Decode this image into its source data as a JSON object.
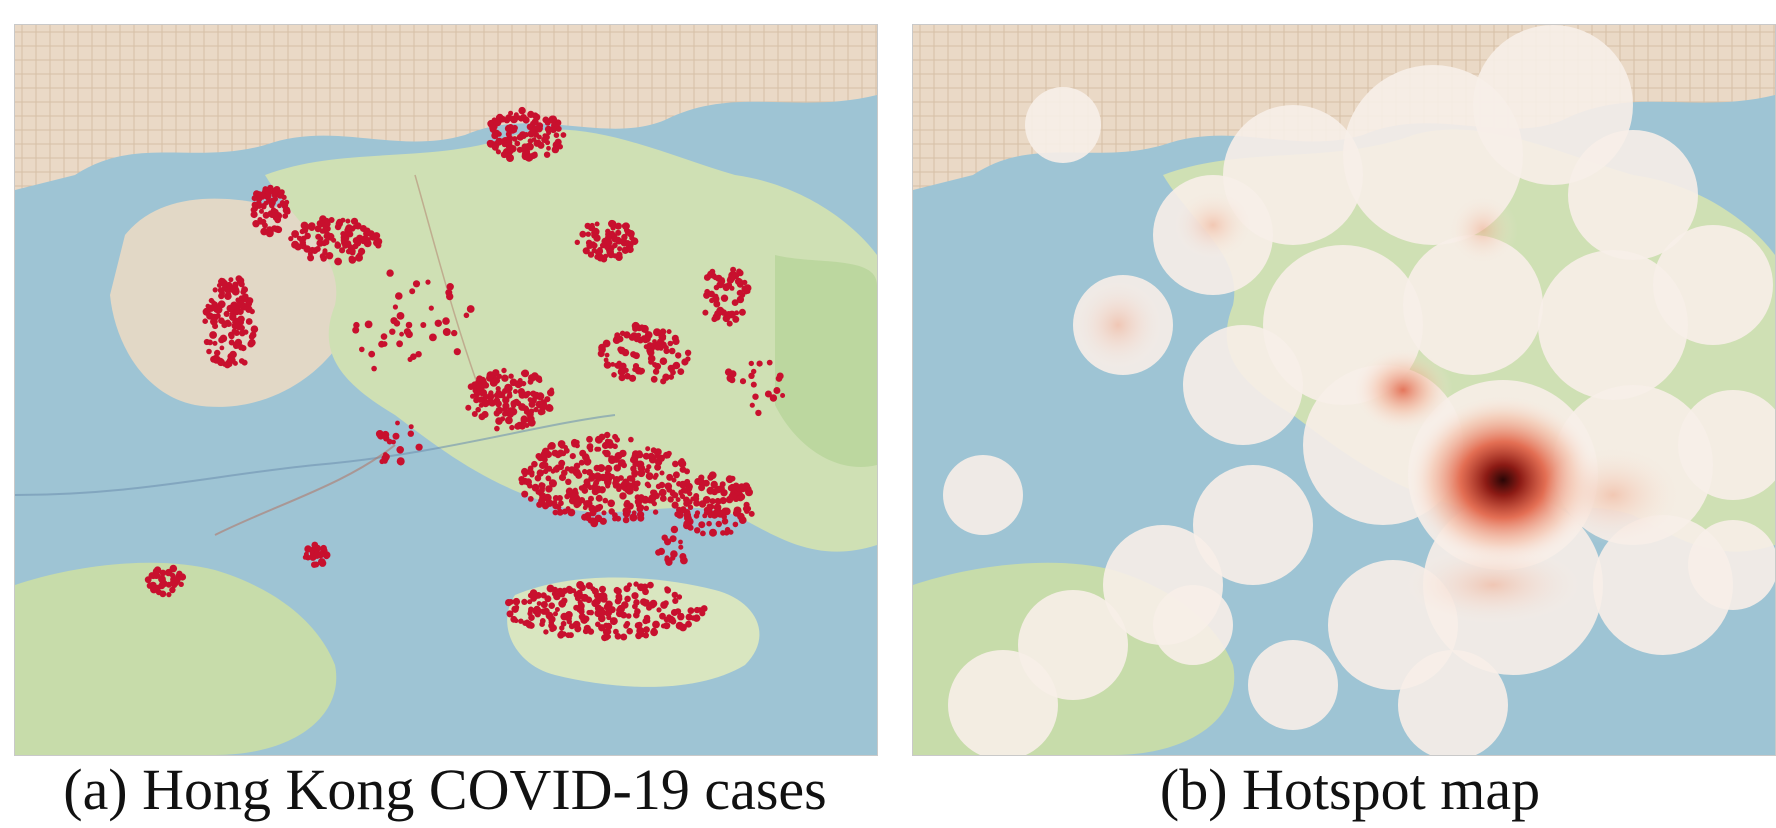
{
  "panels": [
    {
      "id": "a",
      "caption": "(a) Hong Kong COVID-19 cases",
      "layer": "case-points",
      "point_color": "#c8102e"
    },
    {
      "id": "b",
      "caption": "(b) Hotspot map",
      "layer": "density-heatmap",
      "ramp": [
        "#fbeee6",
        "#f3b296",
        "#e0583a",
        "#8b1a14",
        "#2a0606"
      ]
    }
  ],
  "colors": {
    "water": "#9ec4d4",
    "land": "#cfe0b4",
    "urban": "#e8dccf",
    "roads": "#d97f6a"
  }
}
